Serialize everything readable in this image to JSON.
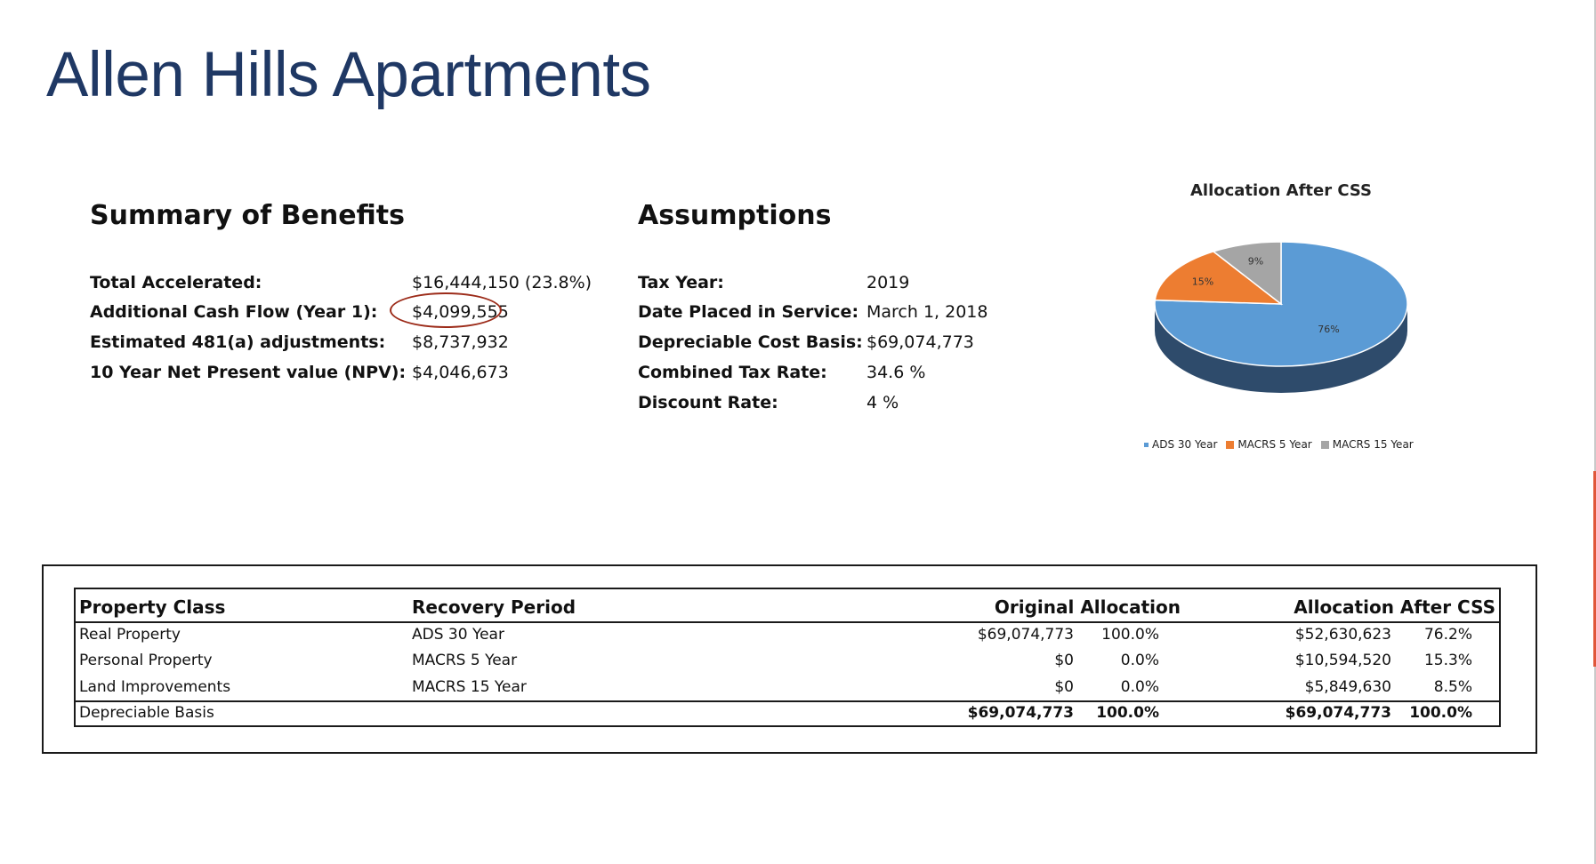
{
  "title": "Allen Hills Apartments",
  "summary": {
    "heading": "Summary of Benefits",
    "rows": [
      {
        "label": "Total Accelerated:",
        "value": "$16,444,150 (23.8%)"
      },
      {
        "label": "Additional Cash Flow (Year 1):",
        "value": "$4,099,555"
      },
      {
        "label": "Estimated 481(a) adjustments:",
        "value": "$8,737,932"
      },
      {
        "label": "10 Year Net Present value (NPV):",
        "value": "$4,046,673"
      }
    ]
  },
  "assumptions": {
    "heading": "Assumptions",
    "rows": [
      {
        "label": "Tax Year:",
        "value": "2019"
      },
      {
        "label": "Date Placed in Service:",
        "value": "March 1, 2018"
      },
      {
        "label": "Depreciable Cost Basis:",
        "value": "$69,074,773"
      },
      {
        "label": "Combined Tax Rate:",
        "value": "34.6 %"
      },
      {
        "label": "Discount Rate:",
        "value": "4 %"
      }
    ]
  },
  "chart_data": {
    "type": "pie",
    "title": "Allocation After CSS",
    "series": [
      {
        "name": "ADS 30 Year",
        "value": 76,
        "label": "76%",
        "color": "#5b9bd5",
        "side_color": "#2e4b6b"
      },
      {
        "name": "MACRS 5 Year",
        "value": 15,
        "label": "15%",
        "color": "#ed7d31",
        "side_color": "#8f4a1c"
      },
      {
        "name": "MACRS 15 Year",
        "value": 9,
        "label": "9%",
        "color": "#a5a5a5",
        "side_color": "#6a6a6a"
      }
    ],
    "legend_position": "bottom"
  },
  "allocation_table": {
    "headers": {
      "property_class": "Property Class",
      "recovery_period": "Recovery Period",
      "original_allocation": "Original Allocation",
      "allocation_after_css": "Allocation After CSS"
    },
    "rows": [
      {
        "property_class": "Real Property",
        "recovery_period": "ADS 30 Year",
        "orig_amount": "$69,074,773",
        "orig_pct": "100.0%",
        "after_amount": "$52,630,623",
        "after_pct": "76.2%"
      },
      {
        "property_class": "Personal Property",
        "recovery_period": "MACRS 5 Year",
        "orig_amount": "$0",
        "orig_pct": "0.0%",
        "after_amount": "$10,594,520",
        "after_pct": "15.3%"
      },
      {
        "property_class": "Land Improvements",
        "recovery_period": "MACRS 15 Year",
        "orig_amount": "$0",
        "orig_pct": "0.0%",
        "after_amount": "$5,849,630",
        "after_pct": "8.5%"
      }
    ],
    "total": {
      "label": "Depreciable Basis",
      "orig_amount": "$69,074,773",
      "orig_pct": "100.0%",
      "after_amount": "$69,074,773",
      "after_pct": "100.0%"
    }
  }
}
